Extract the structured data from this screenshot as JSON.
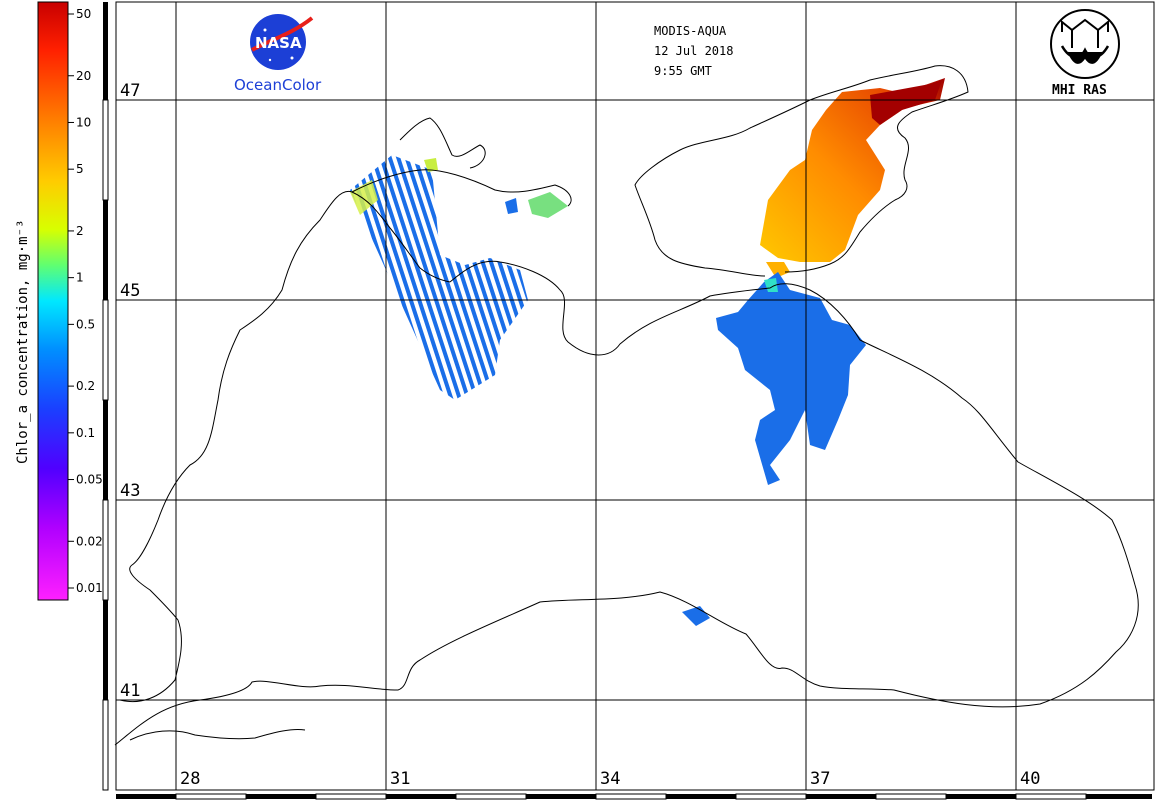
{
  "header": {
    "sensor": "MODIS-AQUA",
    "date": "12 Jul 2018",
    "time": "9:55 GMT"
  },
  "logos": {
    "nasa_text": "NASA",
    "oceancolor_text": "OceanColor",
    "mhi_text": "MHI RAS"
  },
  "colorbar": {
    "title": "Chlor_a concentration, mg·m⁻³",
    "ticks": [
      "50",
      "20",
      "10",
      "5",
      "2",
      "1",
      "0.5",
      "0.2",
      "0.1",
      "0.05",
      "0.02",
      "0.01"
    ],
    "colors": [
      "#c80000",
      "#ff2a00",
      "#ff8a00",
      "#ffd200",
      "#c8ff00",
      "#5cff7a",
      "#00e6ff",
      "#008cff",
      "#1a3cff",
      "#5a00ff",
      "#b400ff",
      "#ff20ff"
    ]
  },
  "grid": {
    "latitudes": [
      "47",
      "45",
      "43",
      "41"
    ],
    "longitudes": [
      "28",
      "31",
      "34",
      "37",
      "40"
    ]
  },
  "colors": {
    "low_chl": "#1a6ee8",
    "grid": "#000000"
  }
}
